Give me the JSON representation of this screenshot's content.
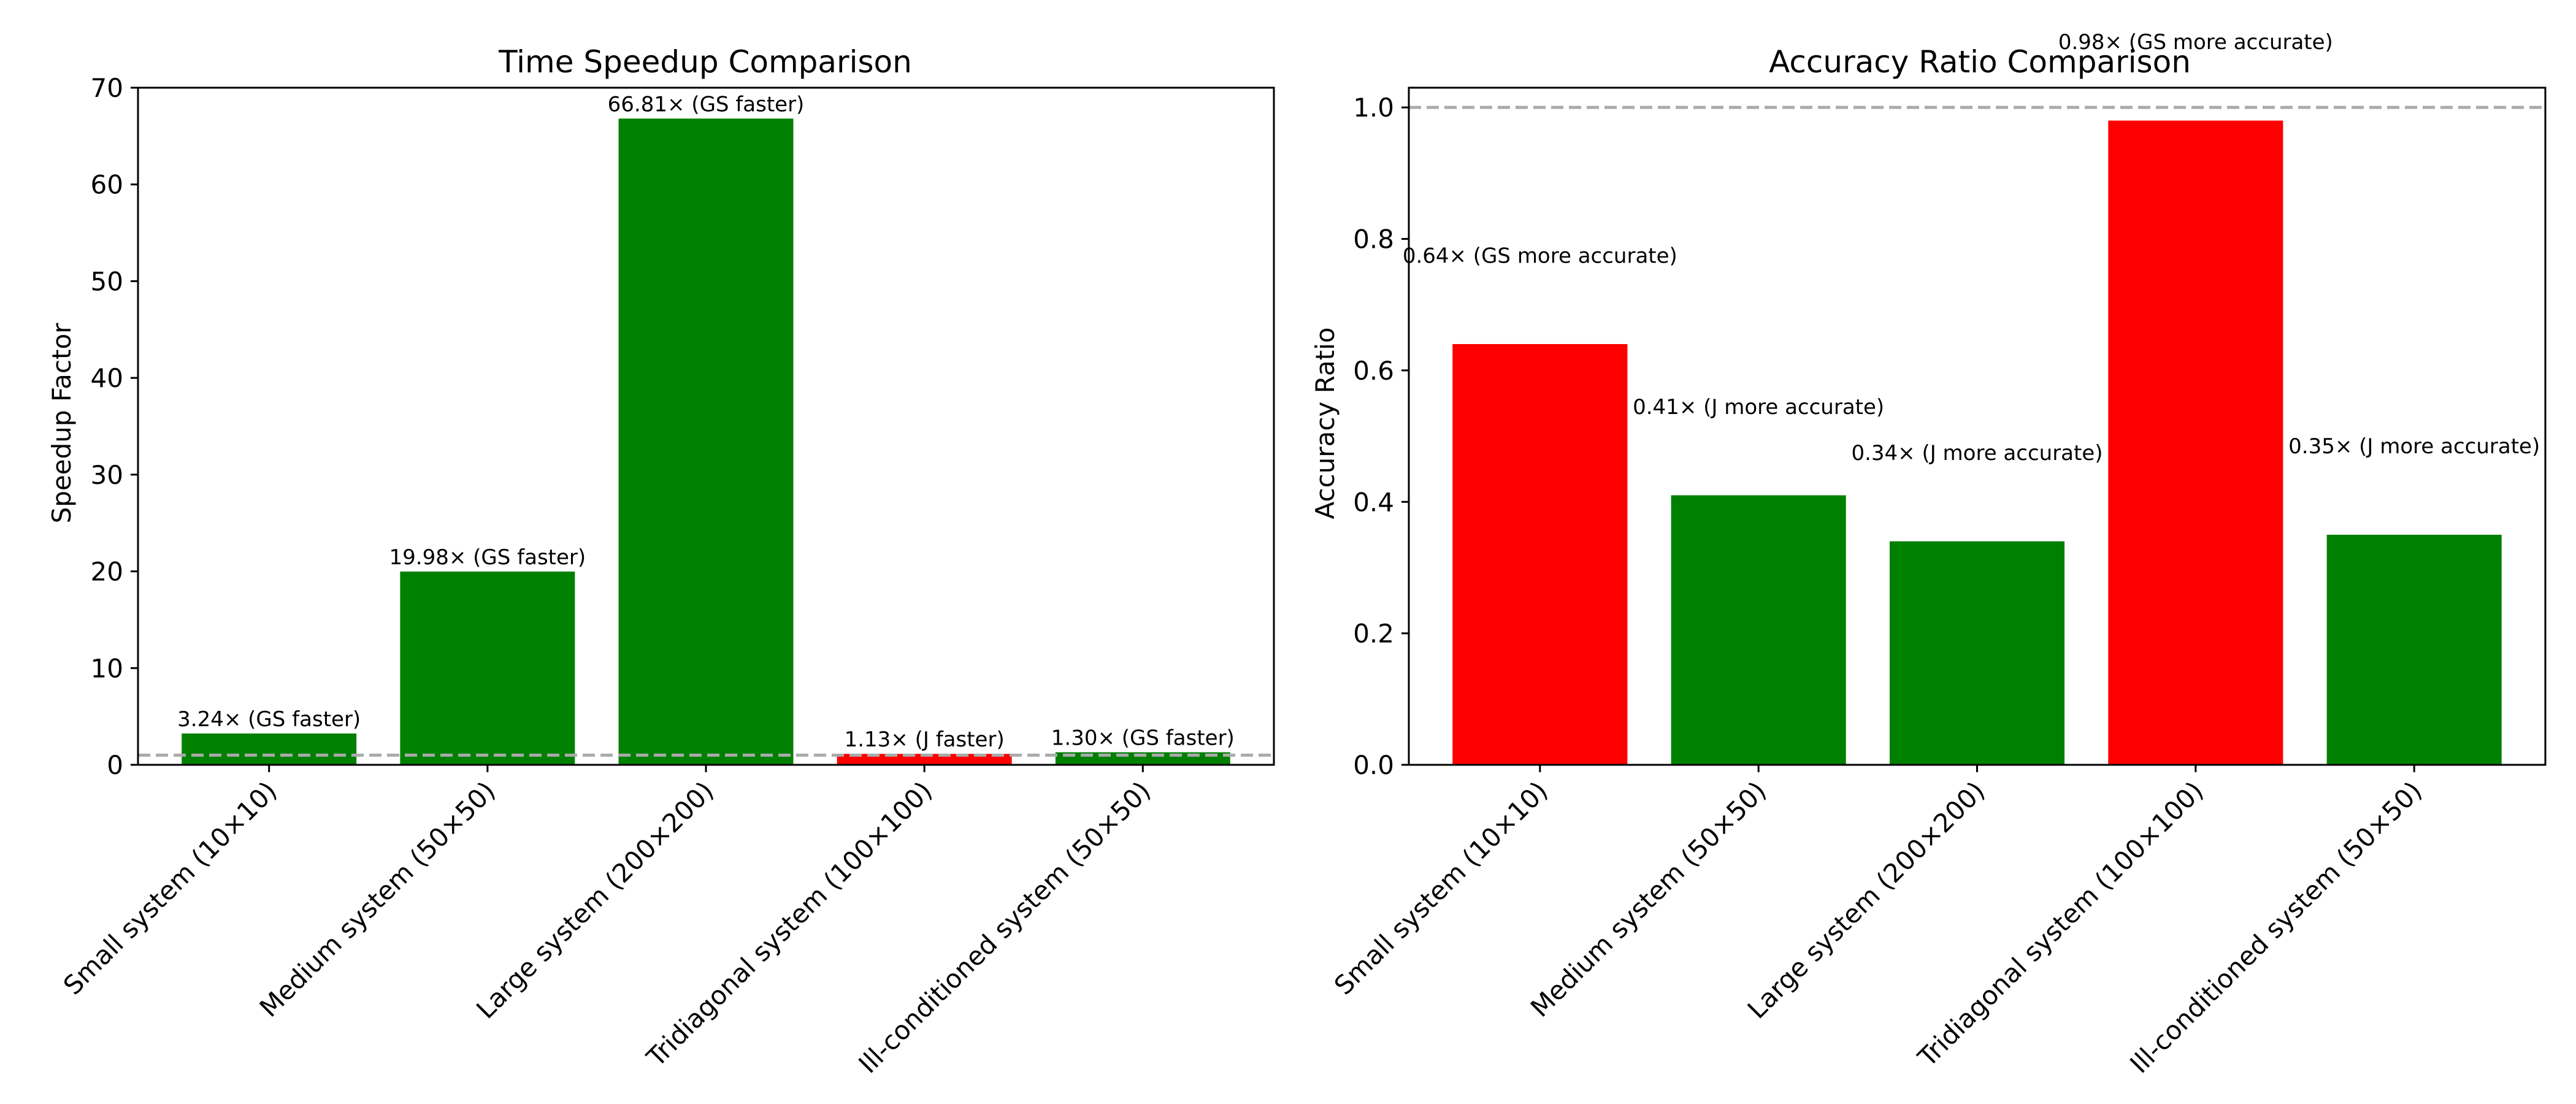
{
  "colors": {
    "gs_better": "#008000",
    "j_better": "#ff0000",
    "reference_line": "#aaaaaa",
    "axis": "#000000",
    "background": "#ffffff"
  },
  "chart_data": [
    {
      "type": "bar",
      "title": "Time Speedup Comparison",
      "xlabel": "",
      "ylabel": "Speedup Factor",
      "ylim": [
        0,
        70
      ],
      "yticks": [
        "0",
        "10",
        "20",
        "30",
        "40",
        "50",
        "60",
        "70"
      ],
      "grid": false,
      "categories": [
        "Small system (10×10)",
        "Medium system (50×50)",
        "Large system (200×200)",
        "Tridiagonal system (100×100)",
        "Ill-conditioned system (50×50)"
      ],
      "values": [
        3.24,
        19.98,
        66.81,
        1.13,
        1.3
      ],
      "bar_colors": [
        "#008000",
        "#008000",
        "#008000",
        "#ff0000",
        "#008000"
      ],
      "data_labels": [
        "3.24× (GS faster)",
        "19.98× (GS faster)",
        "66.81× (GS faster)",
        "1.13× (J faster)",
        "1.30× (GS faster)"
      ],
      "reference_line": 1.0
    },
    {
      "type": "bar",
      "title": "Accuracy Ratio Comparison",
      "xlabel": "",
      "ylabel": "Accuracy Ratio",
      "ylim": [
        0,
        1.03
      ],
      "yticks": [
        "0.0",
        "0.2",
        "0.4",
        "0.6",
        "0.8",
        "1.0"
      ],
      "grid": false,
      "categories": [
        "Small system (10×10)",
        "Medium system (50×50)",
        "Large system (200×200)",
        "Tridiagonal system (100×100)",
        "Ill-conditioned system (50×50)"
      ],
      "values": [
        0.64,
        0.41,
        0.34,
        0.98,
        0.35
      ],
      "bar_colors": [
        "#ff0000",
        "#008000",
        "#008000",
        "#ff0000",
        "#008000"
      ],
      "data_labels": [
        "0.64× (GS more accurate)",
        "0.41× (J more accurate)",
        "0.34× (J more accurate)",
        "0.98× (GS more accurate)",
        "0.35× (J more accurate)"
      ],
      "reference_line": 1.0
    }
  ]
}
